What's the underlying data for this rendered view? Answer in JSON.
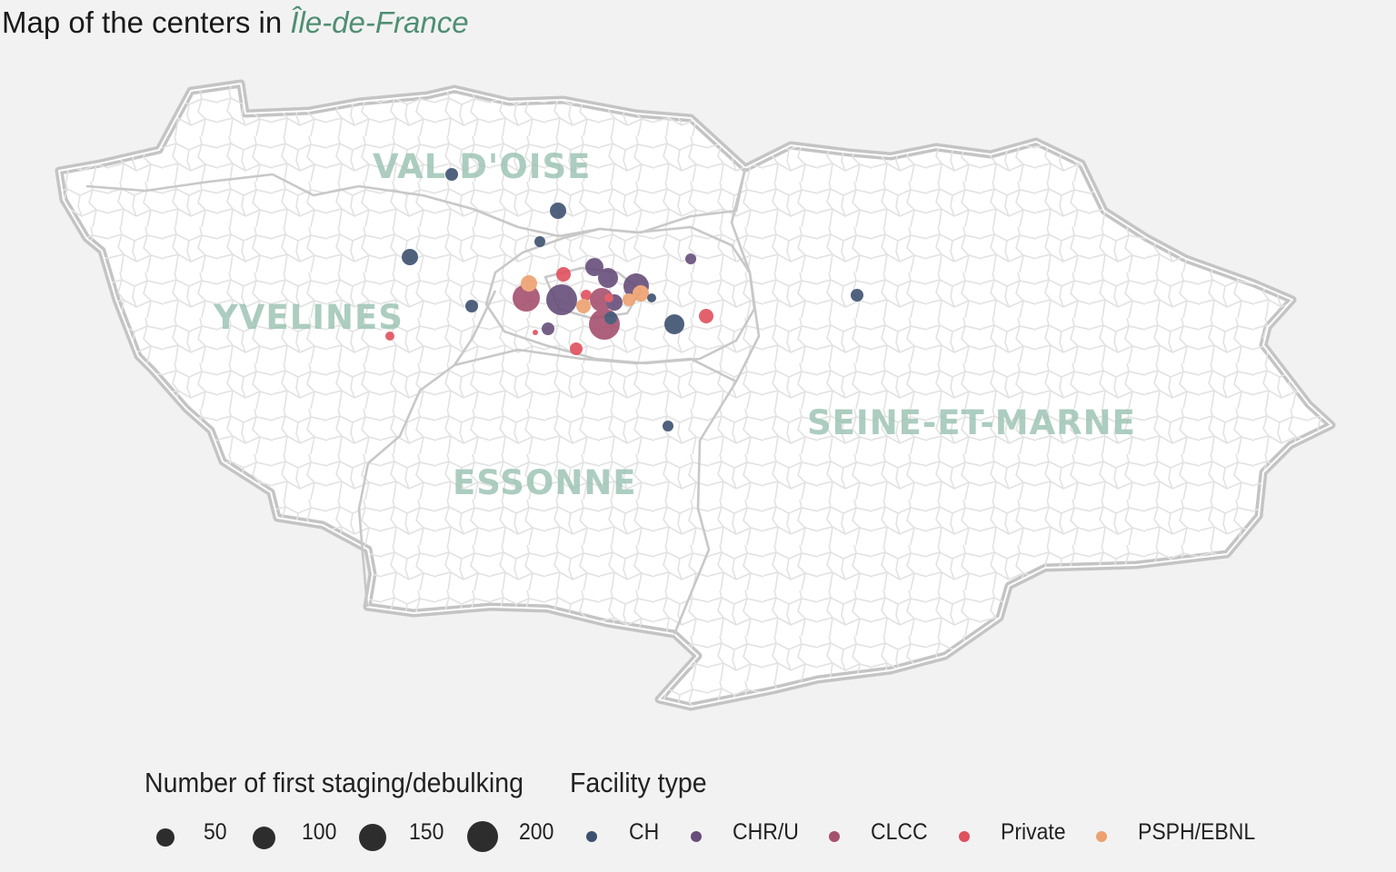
{
  "title": {
    "prefix": "Map of the centers in ",
    "region": "Île-de-France"
  },
  "departments": [
    {
      "id": "val-doise",
      "label": "VAL D'OISE"
    },
    {
      "id": "yvelines",
      "label": "YVELINES"
    },
    {
      "id": "essonne",
      "label": "ESSONNE"
    },
    {
      "id": "seine-et-marne",
      "label": "SEINE-ET-MARNE"
    }
  ],
  "colors": {
    "background": "#f2f2f2",
    "land": "#ffffff",
    "outer_border": "#c4c4c4",
    "dept_border": "#c8c8c8",
    "commune_border": "#e2e2e2",
    "CH": "#3d5170",
    "CHR/U": "#674e7a",
    "CLCC": "#a5506e",
    "Private": "#e0505e",
    "PSPH/EBNL": "#eda16f"
  },
  "legend": {
    "size_title": "Number of first staging/debulking",
    "type_title": "Facility type",
    "sizes": [
      {
        "label": "50"
      },
      {
        "label": "100"
      },
      {
        "label": "150"
      },
      {
        "label": "200"
      }
    ],
    "types": [
      {
        "label": "CH"
      },
      {
        "label": "CHR/U"
      },
      {
        "label": "CLCC"
      },
      {
        "label": "Private"
      },
      {
        "label": "PSPH/EBNL"
      }
    ]
  }
}
